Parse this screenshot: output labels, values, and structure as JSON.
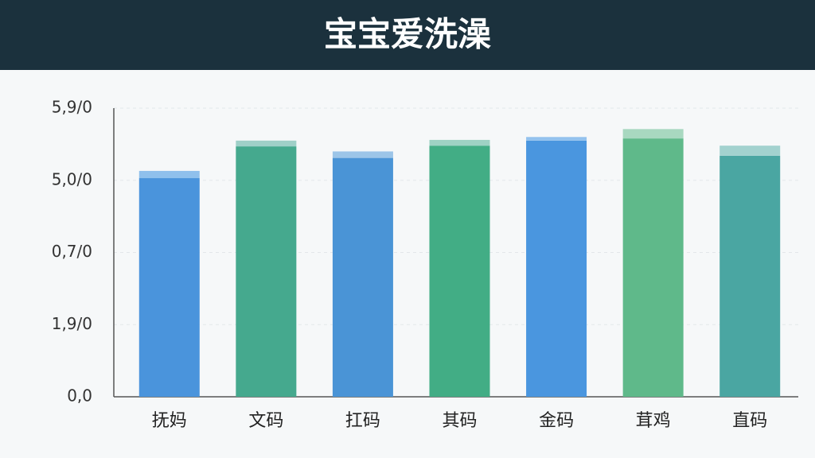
{
  "chart_data": {
    "type": "bar",
    "title": "宝宝爱洗澡",
    "categories": [
      "抚妈",
      "文码",
      "扛码",
      "其码",
      "金码",
      "茸鸡",
      "直码"
    ],
    "series": [
      {
        "colors": [
          "#4a94dc",
          "#45a98e",
          "#4a94d6",
          "#42ad85",
          "#4a96df",
          "#5fb98a",
          "#4aa6a2"
        ],
        "values": [
          3.03,
          3.47,
          3.31,
          3.48,
          3.55,
          3.58,
          3.34
        ]
      },
      {
        "colors": [
          "#8fc0ec",
          "#9fd0c8",
          "#9cc5e8",
          "#9ed2c4",
          "#93c2ee",
          "#a8d8c0",
          "#a3d2cf"
        ],
        "values": [
          0.1,
          0.08,
          0.09,
          0.08,
          0.05,
          0.13,
          0.14
        ]
      }
    ],
    "ylim": [
      0,
      4
    ],
    "yticks": [
      {
        "value": 0,
        "label": "0,0"
      },
      {
        "value": 1,
        "label": "1,9/0"
      },
      {
        "value": 2,
        "label": "0,7/0"
      },
      {
        "value": 3,
        "label": "5,0/0"
      },
      {
        "value": 4,
        "label": "5,9/0"
      }
    ],
    "grid": true
  }
}
